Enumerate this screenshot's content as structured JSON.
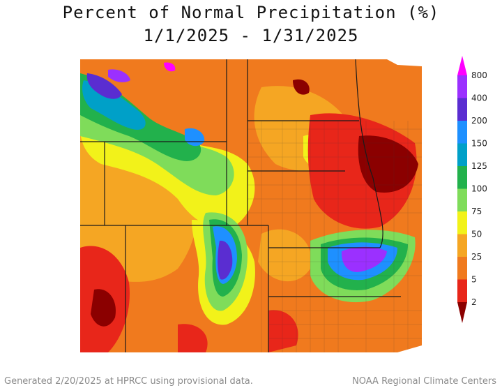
{
  "title": {
    "line1": "Percent of Normal Precipitation (%)",
    "line2": "1/1/2025 - 1/31/2025"
  },
  "legend": {
    "bins": [
      {
        "label": "800",
        "color": "#ff00ff"
      },
      {
        "label": "400",
        "color": "#9b30ff"
      },
      {
        "label": "200",
        "color": "#5a2dd1"
      },
      {
        "label": "150",
        "color": "#1e90ff"
      },
      {
        "label": "125",
        "color": "#00a0c8"
      },
      {
        "label": "100",
        "color": "#22b14c"
      },
      {
        "label": "75",
        "color": "#7fdc5a"
      },
      {
        "label": "50",
        "color": "#f2f21a"
      },
      {
        "label": "25",
        "color": "#f5a623"
      },
      {
        "label": "5",
        "color": "#f07a1e"
      },
      {
        "label": "2",
        "color": "#e8261a"
      }
    ],
    "bottom_color": "#8b0000"
  },
  "colors": {
    "deep_red": "#8b0000",
    "red": "#e8261a",
    "orange": "#f07a1e",
    "light_orange": "#f5a623",
    "yellow": "#f2f21a",
    "light_green": "#7fdc5a",
    "green": "#22b14c",
    "teal": "#00a0c8",
    "blue": "#1e90ff",
    "indigo": "#5a2dd1",
    "purple": "#9b30ff",
    "magenta": "#ff00ff"
  },
  "footer": {
    "left": "Generated 2/20/2025 at HPRCC using provisional data.",
    "right": "NOAA Regional Climate Centers"
  }
}
